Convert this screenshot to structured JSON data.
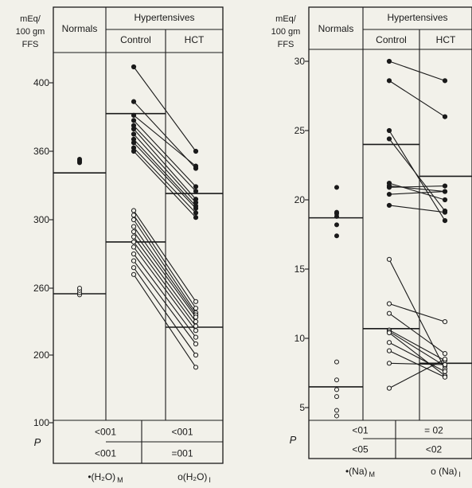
{
  "chart_data": [
    {
      "type": "scatter",
      "ylabel": [
        "mEq/",
        "100 gm",
        "FFS"
      ],
      "yticks": [
        "400",
        "360",
        "300",
        "260",
        "200",
        "100"
      ],
      "header": {
        "group": "Hypertensives",
        "normals": "Normals",
        "control": "Control",
        "hct": "HCT"
      },
      "p_label": "P",
      "p_values": [
        [
          "<001",
          "<001"
        ],
        [
          "<001",
          "=001"
        ]
      ],
      "footer": {
        "left": "•(H₂O)",
        "left_sub": "M",
        "right": "o(H₂O)",
        "right_sub": "I"
      },
      "normals_filled": [
        350,
        351,
        352,
        353
      ],
      "normals_open": [
        254,
        256,
        258,
        260
      ],
      "normals_means": [
        341,
        255
      ],
      "filled_pairs": [
        [
          410,
          360
        ],
        [
          389,
          345
        ],
        [
          381,
          347
        ],
        [
          378,
          329
        ],
        [
          375,
          325
        ],
        [
          373,
          318
        ],
        [
          370,
          315
        ],
        [
          367,
          312
        ],
        [
          365,
          310
        ],
        [
          362,
          306
        ],
        [
          360,
          302
        ]
      ],
      "open_pairs": [
        [
          308,
          248
        ],
        [
          304,
          242
        ],
        [
          300,
          238
        ],
        [
          296,
          236
        ],
        [
          293,
          234
        ],
        [
          290,
          230
        ],
        [
          287,
          226
        ],
        [
          284,
          222
        ],
        [
          280,
          216
        ],
        [
          276,
          210
        ],
        [
          272,
          200
        ],
        [
          268,
          182
        ]
      ],
      "control_means": [
        382,
        287
      ],
      "hct_means": [
        323,
        225
      ]
    },
    {
      "type": "scatter",
      "ylabel": [
        "mEq/",
        "100 gm",
        "FFS"
      ],
      "yticks": [
        "30",
        "25",
        "20",
        "15",
        "10",
        "5"
      ],
      "header": {
        "group": "Hypertensives",
        "normals": "Normals",
        "control": "Control",
        "hct": "HCT"
      },
      "p_label": "P",
      "p_values": [
        [
          "<01",
          "<05"
        ],
        [
          "= 02",
          "<02"
        ]
      ],
      "footer": {
        "left": "•(Na)",
        "left_sub": "M",
        "right": "o (Na)",
        "right_sub": "I"
      },
      "normals_filled": [
        20.9,
        19.1,
        19.0,
        18.8,
        18.2,
        17.4
      ],
      "normals_open": [
        8.3,
        7.0,
        6.3,
        5.8,
        4.8,
        4.4
      ],
      "normals_means": [
        18.7,
        6.5
      ],
      "filled_pairs": [
        [
          30.0,
          28.6
        ],
        [
          28.6,
          26.0
        ],
        [
          25.0,
          18.5
        ],
        [
          24.4,
          19.2
        ],
        [
          21.2,
          20.0
        ],
        [
          21.0,
          20.6
        ],
        [
          20.9,
          21.0
        ],
        [
          20.4,
          20.6
        ],
        [
          19.6,
          19.1
        ]
      ],
      "open_pairs": [
        [
          15.7,
          7.8
        ],
        [
          12.5,
          11.2
        ],
        [
          11.8,
          8.9
        ],
        [
          10.6,
          8.4
        ],
        [
          10.5,
          8.0
        ],
        [
          10.4,
          7.3
        ],
        [
          9.7,
          7.6
        ],
        [
          9.1,
          7.2
        ],
        [
          8.2,
          8.1
        ],
        [
          6.4,
          8.5
        ]
      ],
      "control_means": [
        24.0,
        10.7
      ],
      "hct_means": [
        21.7,
        8.2
      ]
    }
  ]
}
